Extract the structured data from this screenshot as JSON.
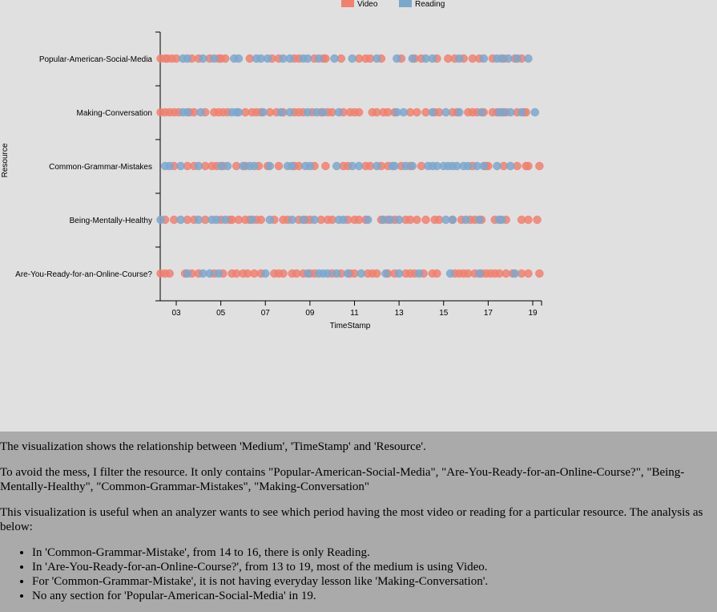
{
  "chart_data": {
    "type": "scatter",
    "xlabel": "TimeStamp",
    "ylabel": "Resource",
    "x_ticks": [
      "03",
      "05",
      "07",
      "09",
      "11",
      "13",
      "15",
      "17",
      "19"
    ],
    "x_range": [
      2.3,
      19.4
    ],
    "categories": [
      "Popular-American-Social-Media",
      "Making-Conversation",
      "Common-Grammar-Mistakes",
      "Being-Mentally-Healthy",
      "Are-You-Ready-for-an-Online-Course?"
    ],
    "legend_position": "top",
    "series": [
      {
        "name": "Video",
        "color": "#f08070",
        "points": [
          [
            "Popular-American-Social-Media",
            [
              2.3,
              2.5,
              2.6,
              2.8,
              3.0,
              3.7,
              4.0,
              4.5,
              4.9,
              5.0,
              5.2,
              6.3,
              7.3,
              7.6,
              8.3,
              8.5,
              9.2,
              9.6,
              9.7,
              10.4,
              11.2,
              11.5,
              11.7,
              12.2,
              13.1,
              13.7,
              14.0,
              14.7,
              15.2,
              15.5,
              15.9,
              16.3,
              16.6,
              17.2,
              17.7,
              18.2,
              18.5
            ]
          ],
          [
            "Making-Conversation",
            [
              2.3,
              2.5,
              2.7,
              2.9,
              3.1,
              3.6,
              3.8,
              4.3,
              4.7,
              4.9,
              5.1,
              5.3,
              6.1,
              6.4,
              6.6,
              6.8,
              7.2,
              7.5,
              7.8,
              8.3,
              8.5,
              8.7,
              9.1,
              9.5,
              9.8,
              10.0,
              10.5,
              10.8,
              11.0,
              11.2,
              11.8,
              12.0,
              12.3,
              12.5,
              12.8,
              13.5,
              13.8,
              14.2,
              14.6,
              14.8,
              15.4,
              15.6,
              16.1,
              16.3,
              16.5,
              16.8,
              17.2,
              17.4,
              17.6,
              17.8,
              18.3,
              18.6,
              18.7
            ]
          ],
          [
            "Common-Grammar-Mistakes",
            [
              2.9,
              3.5,
              3.8,
              4.3,
              4.6,
              4.8,
              5.1,
              5.7,
              6.1,
              6.7,
              7.1,
              7.6,
              8.3,
              8.5,
              9.2,
              9.7,
              10.5,
              10.7,
              11.5,
              11.7,
              12.2,
              12.5,
              13.1,
              13.5,
              14.0,
              16.3,
              16.9,
              17.0,
              17.7,
              18.3,
              18.7,
              18.8,
              19.3
            ]
          ],
          [
            "Being-Mentally-Healthy",
            [
              2.5,
              2.9,
              3.5,
              3.8,
              4.3,
              5.0,
              5.4,
              5.5,
              5.8,
              6.1,
              6.3,
              6.6,
              6.8,
              7.4,
              7.8,
              8.0,
              8.5,
              8.8,
              9.0,
              9.5,
              9.8,
              10.0,
              10.7,
              11.0,
              11.2,
              11.5,
              12.2,
              12.5,
              12.8,
              13.3,
              13.5,
              13.8,
              14.2,
              14.6,
              14.8,
              15.4,
              15.8,
              16.2,
              16.4,
              16.7,
              17.3,
              17.8,
              18.5,
              18.8,
              19.2
            ]
          ],
          [
            "Are-You-Ready-for-an-Online-Course?",
            [
              2.3,
              2.5,
              2.7,
              3.4,
              3.7,
              4.0,
              4.7,
              5.1,
              5.5,
              5.7,
              6.0,
              6.2,
              6.5,
              6.8,
              7.4,
              7.6,
              7.8,
              8.2,
              8.4,
              8.7,
              9.0,
              9.2,
              10.0,
              10.4,
              10.8,
              11.0,
              11.6,
              11.8,
              12.0,
              12.5,
              12.8,
              13.3,
              13.5,
              13.7,
              14.1,
              14.5,
              14.7,
              15.5,
              15.7,
              15.9,
              16.1,
              16.4,
              16.7,
              16.9,
              17.1,
              17.3,
              17.5,
              17.8,
              18.1,
              18.5,
              18.8,
              19.3
            ]
          ]
        ]
      },
      {
        "name": "Reading",
        "color": "#7ba7cc",
        "points": [
          [
            "Popular-American-Social-Media",
            [
              3.3,
              3.5,
              4.2,
              4.7,
              5.6,
              5.8,
              6.6,
              6.8,
              7.1,
              7.8,
              8.1,
              8.7,
              8.9,
              9.4,
              10.1,
              10.9,
              12.0,
              12.9,
              13.6,
              14.2,
              14.5,
              15.7,
              16.8,
              17.4,
              17.6,
              17.9,
              18.3,
              18.8
            ]
          ],
          [
            "Making-Conversation",
            [
              3.3,
              3.5,
              4.1,
              5.5,
              5.7,
              5.8,
              6.9,
              7.7,
              8.1,
              8.9,
              9.3,
              9.6,
              10.3,
              12.9,
              13.2,
              14.5,
              15.1,
              15.7,
              16.7,
              17.5,
              17.7,
              18.0,
              18.5,
              19.1
            ]
          ],
          [
            "Common-Grammar-Mistakes",
            [
              2.5,
              2.7,
              3.2,
              4.0,
              5.0,
              5.3,
              6.0,
              6.3,
              6.5,
              7.2,
              8.0,
              8.2,
              8.8,
              9.0,
              10.2,
              10.9,
              11.2,
              12.0,
              12.7,
              12.8,
              13.3,
              13.6,
              14.3,
              14.5,
              14.7,
              15.0,
              15.2,
              15.4,
              15.6,
              15.9,
              16.1,
              16.5,
              16.8,
              17.4,
              18.0
            ]
          ],
          [
            "Being-Mentally-Healthy",
            [
              2.3,
              3.2,
              4.0,
              4.6,
              4.8,
              5.2,
              6.4,
              7.2,
              8.2,
              8.7,
              9.2,
              10.3,
              10.5,
              11.6,
              12.3,
              12.6,
              13.0,
              15.1,
              15.4,
              16.0,
              16.6,
              17.5,
              17.6
            ]
          ],
          [
            "Are-You-Ready-for-an-Online-Course?",
            [
              3.5,
              4.2,
              4.5,
              4.9,
              7.0,
              8.9,
              9.4,
              9.6,
              9.8,
              10.2,
              10.7,
              11.3,
              12.4,
              13.0,
              13.9,
              15.3,
              16.6,
              18.2
            ]
          ]
        ]
      }
    ]
  },
  "description": {
    "p1": "The visualization shows the relationship between 'Medium', 'TimeStamp' and 'Resource'.",
    "p2": "To avoid the mess, I filter the resource. It only contains \"Popular-American-Social-Media\", \"Are-You-Ready-for-an-Online-Course?\", \"Being-Mentally-Healthy\", \"Common-Grammar-Mistakes\", \"Making-Conversation\"",
    "p3": "This visualization is useful when an analyzer wants to see which period having the most video or reading for a particular resource. The analysis as below:",
    "items": [
      "In 'Common-Grammar-Mistake', from 14 to 16, there is only Reading.",
      "In 'Are-You-Ready-for-an-Online-Course?', from 13 to 19, most of the medium is using Video.",
      "For 'Common-Grammar-Mistake', it is not having everyday lesson like 'Making-Conversation'.",
      "No any section for 'Popular-American-Social-Media' in 19."
    ]
  }
}
